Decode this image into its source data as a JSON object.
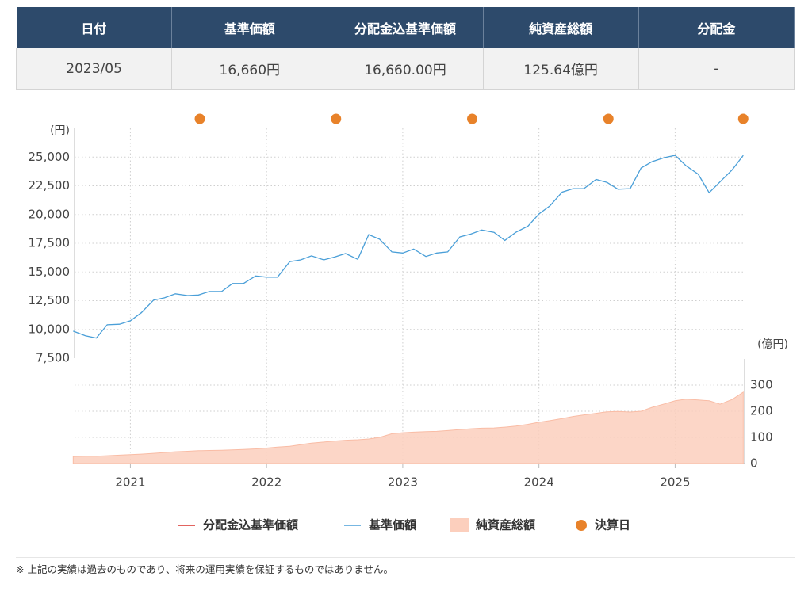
{
  "table": {
    "headers": [
      "日付",
      "基準価額",
      "分配金込基準価額",
      "純資産総額",
      "分配金"
    ],
    "rows": [
      [
        "2023/05",
        "16,660円",
        "16,660.00円",
        "125.64億円",
        "-"
      ]
    ]
  },
  "legend": [
    {
      "name": "分配金込基準価額",
      "color": "#d9312b",
      "kind": "line"
    },
    {
      "name": "基準価額",
      "color": "#4a9fd8",
      "kind": "line"
    },
    {
      "name": "純資産総額",
      "color": "#fccfbd",
      "kind": "area"
    },
    {
      "name": "決算日",
      "color": "#e8822a",
      "kind": "dot"
    }
  ],
  "chart_data": [
    {
      "type": "line",
      "y_unit": "(円)",
      "x": [
        2020.58,
        2020.67,
        2020.75,
        2020.83,
        2020.92,
        2021.0,
        2021.08,
        2021.17,
        2021.25,
        2021.33,
        2021.42,
        2021.5,
        2021.58,
        2021.67,
        2021.75,
        2021.83,
        2021.92,
        2022.0,
        2022.08,
        2022.17,
        2022.25,
        2022.33,
        2022.42,
        2022.5,
        2022.58,
        2022.67,
        2022.75,
        2022.83,
        2022.92,
        2023.0,
        2023.08,
        2023.17,
        2023.25,
        2023.33,
        2023.42,
        2023.5,
        2023.58,
        2023.67,
        2023.75,
        2023.83,
        2023.92,
        2024.0,
        2024.08,
        2024.17,
        2024.25,
        2024.33,
        2024.42,
        2024.5,
        2024.58,
        2024.67,
        2024.75,
        2024.83,
        2024.92,
        2025.0,
        2025.08,
        2025.17,
        2025.25,
        2025.33,
        2025.42,
        2025.5
      ],
      "series": [
        {
          "color": "#4a9fd8",
          "values": [
            9850,
            9450,
            9250,
            10400,
            10450,
            10750,
            11450,
            12550,
            12750,
            13100,
            12950,
            13000,
            13300,
            13300,
            14000,
            14000,
            14650,
            14550,
            14550,
            15900,
            16050,
            16400,
            16050,
            16300,
            16600,
            16100,
            18250,
            17850,
            16750,
            16650,
            17000,
            16350,
            16650,
            16750,
            18050,
            18300,
            18650,
            18450,
            17750,
            18450,
            19000,
            20050,
            20750,
            21950,
            22250,
            22250,
            23050,
            22800,
            22200,
            22250,
            24050,
            24600,
            24950,
            25150,
            24250,
            23500,
            21900,
            22850,
            23900,
            25150
          ]
        }
      ],
      "settlement": {
        "color": "#e8822a",
        "x": [
          2021.51,
          2022.51,
          2023.51,
          2024.51,
          2025.5
        ]
      },
      "xlim": [
        2020.59,
        2025.51
      ],
      "xticks": [
        2021,
        2022,
        2023,
        2024,
        2025
      ],
      "ylim": [
        7500,
        27500
      ],
      "yticks": [
        {
          "value": 7500,
          "label": "7,500"
        },
        {
          "value": 10000,
          "label": "10,000"
        },
        {
          "value": 12500,
          "label": "12,500"
        },
        {
          "value": 15000,
          "label": "15,000"
        },
        {
          "value": 17500,
          "label": "17,500"
        },
        {
          "value": 20000,
          "label": "20,000"
        },
        {
          "value": 22500,
          "label": "22,500"
        },
        {
          "value": 25000,
          "label": "25,000"
        }
      ],
      "grid": true
    },
    {
      "type": "area",
      "y_unit": "(億円)",
      "x": [
        2020.58,
        2020.67,
        2020.75,
        2020.83,
        2020.92,
        2021.0,
        2021.08,
        2021.17,
        2021.25,
        2021.33,
        2021.42,
        2021.5,
        2021.58,
        2021.67,
        2021.75,
        2021.83,
        2021.92,
        2022.0,
        2022.08,
        2022.17,
        2022.25,
        2022.33,
        2022.42,
        2022.5,
        2022.58,
        2022.67,
        2022.75,
        2022.83,
        2022.92,
        2023.0,
        2023.08,
        2023.17,
        2023.25,
        2023.33,
        2023.42,
        2023.5,
        2023.58,
        2023.67,
        2023.75,
        2023.83,
        2023.92,
        2024.0,
        2024.08,
        2024.17,
        2024.25,
        2024.33,
        2024.42,
        2024.5,
        2024.58,
        2024.67,
        2024.75,
        2024.83,
        2024.92,
        2025.0,
        2025.08,
        2025.17,
        2025.25,
        2025.33,
        2025.42,
        2025.5
      ],
      "series": [
        {
          "color": "#fccfbd",
          "values": [
            27,
            28,
            28,
            30,
            32,
            34,
            36,
            39,
            42,
            45,
            47,
            49,
            50,
            51,
            52,
            54,
            56,
            59,
            63,
            66,
            72,
            78,
            82,
            86,
            89,
            91,
            94,
            100,
            114,
            118,
            120,
            122,
            123,
            126,
            130,
            133,
            135,
            136,
            139,
            143,
            150,
            158,
            164,
            172,
            180,
            186,
            192,
            198,
            199,
            197,
            200,
            215,
            228,
            240,
            246,
            243,
            240,
            227,
            245,
            273
          ]
        }
      ],
      "xlim": [
        2020.59,
        2025.51
      ],
      "xticks": [
        2021,
        2022,
        2023,
        2024,
        2025
      ],
      "ylim": [
        0,
        400
      ],
      "yticks": [
        0,
        100,
        200,
        300
      ],
      "grid": true
    }
  ],
  "note": "※ 上記の実績は過去のものであり、将来の運用実績を保証するものではありません。"
}
